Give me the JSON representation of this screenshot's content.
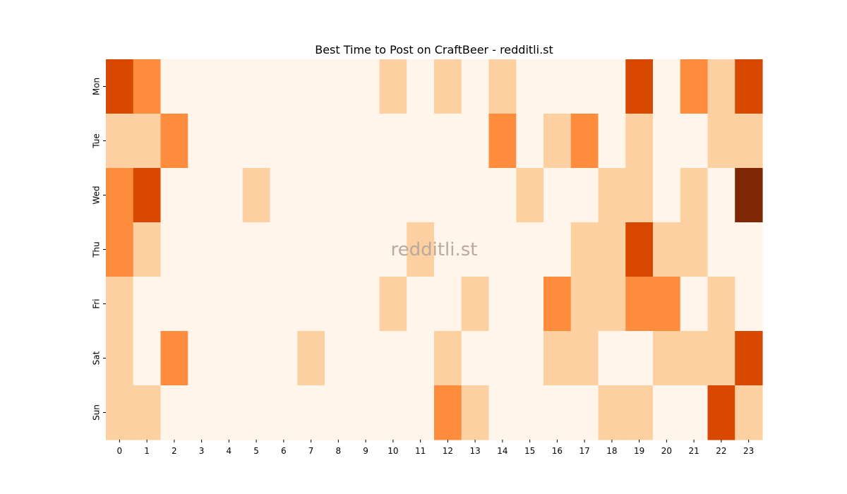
{
  "chart_data": {
    "type": "heatmap",
    "title": "Best Time to Post on CraftBeer - redditli.st",
    "watermark": "redditli.st",
    "x_categories": [
      "0",
      "1",
      "2",
      "3",
      "4",
      "5",
      "6",
      "7",
      "8",
      "9",
      "10",
      "11",
      "12",
      "13",
      "14",
      "15",
      "16",
      "17",
      "18",
      "19",
      "20",
      "21",
      "22",
      "23"
    ],
    "y_categories": [
      "Mon",
      "Tue",
      "Wed",
      "Thu",
      "Fri",
      "Sat",
      "Sun"
    ],
    "xlabel": "",
    "ylabel": "",
    "colorscale": [
      "#fff5eb",
      "#fdd0a2",
      "#fd8d3c",
      "#d94801",
      "#7f2704"
    ],
    "values": [
      [
        3,
        2,
        0,
        0,
        0,
        0,
        0,
        0,
        0,
        0,
        1,
        0,
        1,
        0,
        1,
        0,
        0,
        0,
        0,
        3,
        0,
        2,
        1,
        3
      ],
      [
        1,
        1,
        2,
        0,
        0,
        0,
        0,
        0,
        0,
        0,
        0,
        0,
        0,
        0,
        2,
        0,
        1,
        2,
        0,
        1,
        0,
        0,
        1,
        1
      ],
      [
        2,
        3,
        0,
        0,
        0,
        1,
        0,
        0,
        0,
        0,
        0,
        0,
        0,
        0,
        0,
        1,
        0,
        0,
        1,
        1,
        0,
        1,
        0,
        4
      ],
      [
        2,
        1,
        0,
        0,
        0,
        0,
        0,
        0,
        0,
        0,
        0,
        1,
        0,
        0,
        0,
        0,
        0,
        1,
        1,
        3,
        1,
        1,
        0,
        0
      ],
      [
        1,
        0,
        0,
        0,
        0,
        0,
        0,
        0,
        0,
        0,
        1,
        0,
        0,
        1,
        0,
        0,
        2,
        1,
        1,
        2,
        2,
        0,
        1,
        0
      ],
      [
        1,
        0,
        2,
        0,
        0,
        0,
        0,
        1,
        0,
        0,
        0,
        0,
        1,
        0,
        0,
        0,
        1,
        1,
        0,
        0,
        1,
        1,
        1,
        3
      ],
      [
        1,
        1,
        0,
        0,
        0,
        0,
        0,
        0,
        0,
        0,
        0,
        0,
        2,
        1,
        0,
        0,
        0,
        0,
        1,
        1,
        0,
        0,
        3,
        1
      ]
    ],
    "grid": false,
    "legend": "none"
  }
}
